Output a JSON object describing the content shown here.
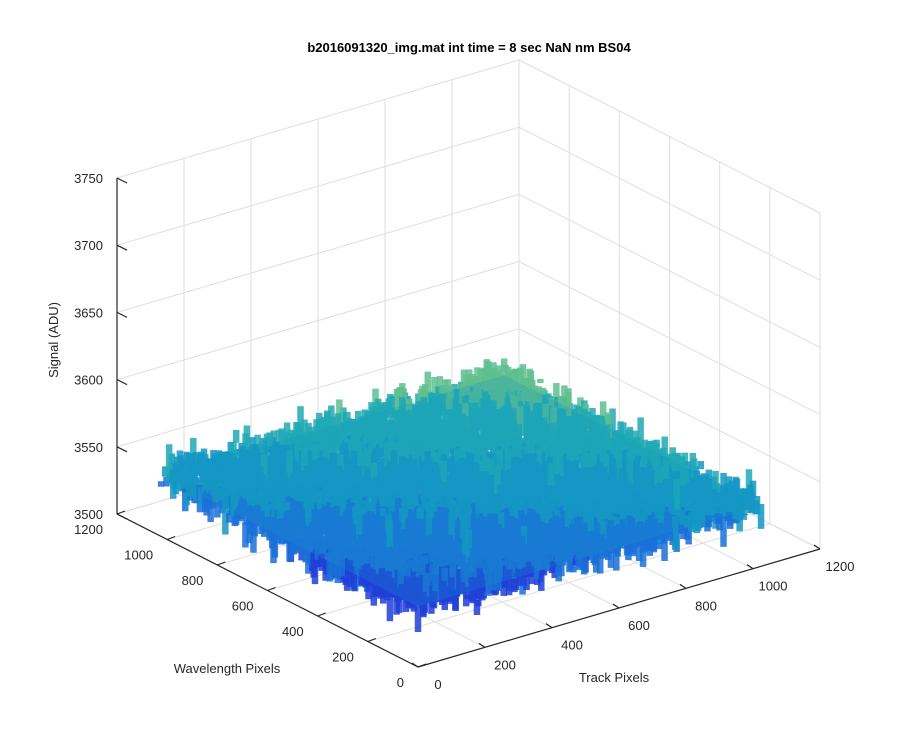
{
  "chart_data": {
    "type": "surface",
    "title": "b2016091320_img.mat int time = 8 sec  NaN nm BS04",
    "xlabel": "Track Pixels",
    "ylabel": "Wavelength Pixels",
    "zlabel": "Signal (ADU)",
    "xlim": [
      0,
      1200
    ],
    "ylim": [
      0,
      1200
    ],
    "zlim": [
      3500,
      3750
    ],
    "x_ticks": [
      "0",
      "200",
      "400",
      "600",
      "800",
      "1000",
      "1200"
    ],
    "y_ticks": [
      "0",
      "200",
      "400",
      "600",
      "800",
      "1000",
      "1200"
    ],
    "z_ticks": [
      "3500",
      "3550",
      "3600",
      "3650",
      "3700",
      "3750"
    ],
    "grid": true,
    "surface": {
      "x_range": [
        0,
        1024
      ],
      "y_range": [
        0,
        1024
      ],
      "mean_signal": 3545,
      "noise_range": [
        3510,
        3600
      ],
      "colormap": [
        "#1f3fd8",
        "#1a70d9",
        "#1497c4",
        "#20aab5",
        "#5fbf8f"
      ]
    }
  }
}
